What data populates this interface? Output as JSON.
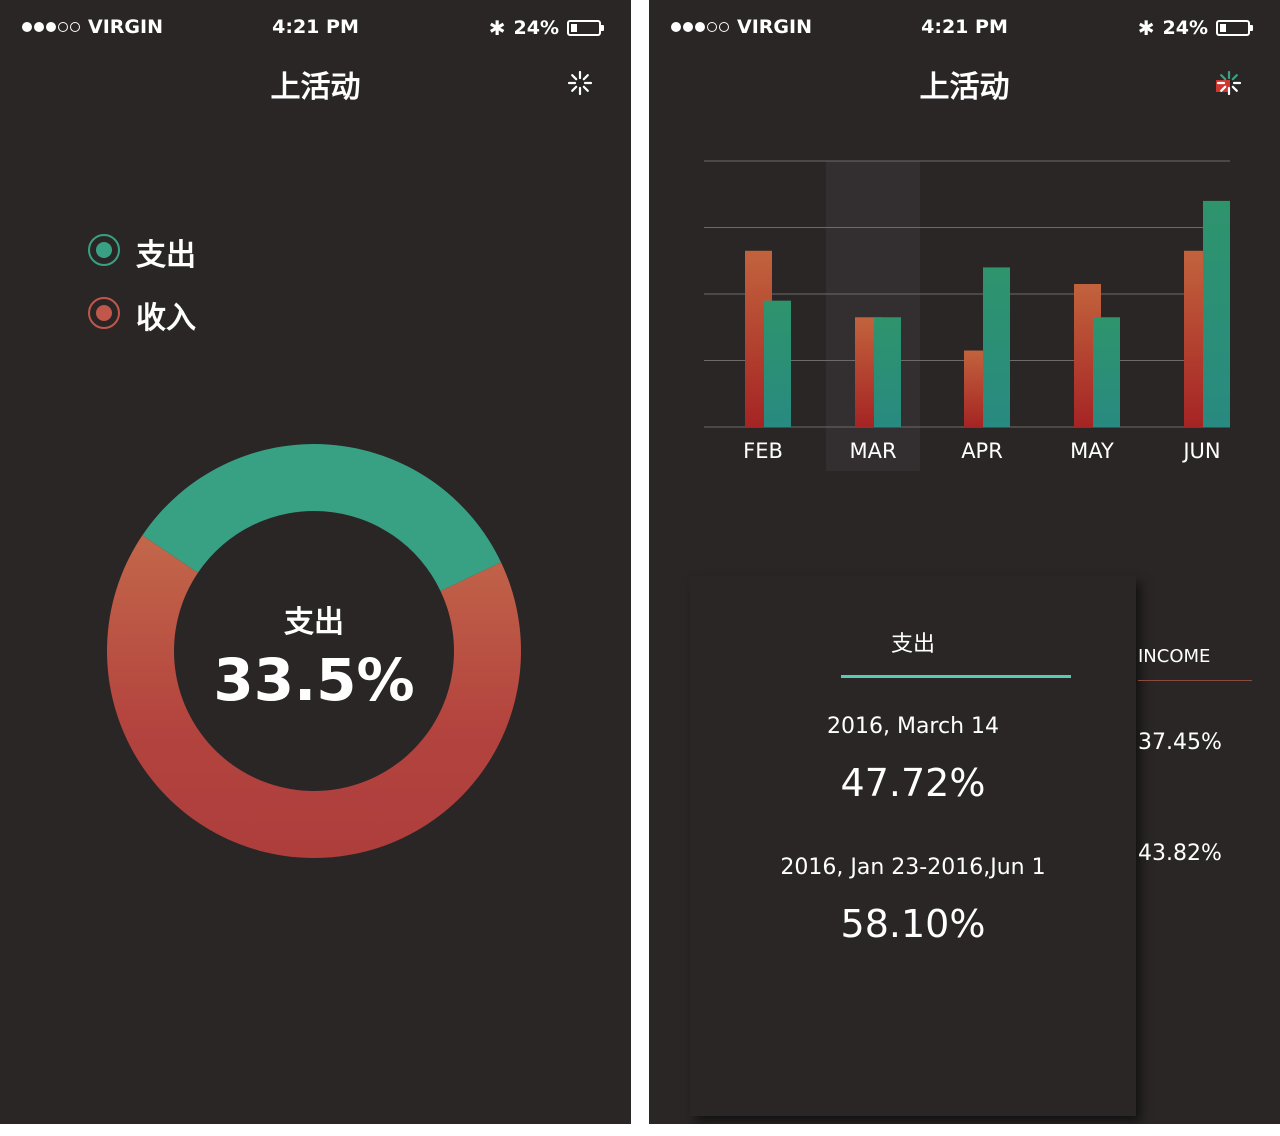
{
  "status_bar": {
    "carrier": "VIRGIN",
    "time": "4:21 PM",
    "battery": "24%",
    "battery_level": 0.24
  },
  "header": {
    "title": "上活动"
  },
  "left": {
    "legend": [
      {
        "label": "支出",
        "color": "#3aa083"
      },
      {
        "label": "收入",
        "color": "#c0574a"
      }
    ],
    "donut": {
      "center_label": "支出",
      "center_value": "33.5%",
      "fraction": 0.335
    }
  },
  "right": {
    "chart_data": {
      "type": "bar",
      "categories": [
        "FEB",
        "MAR",
        "APR",
        "MAY",
        "JUN"
      ],
      "series": [
        {
          "values": [
            53,
            33,
            23,
            43,
            53
          ],
          "color": "#c05a3a"
        },
        {
          "values": [
            38,
            33,
            48,
            33,
            68
          ],
          "color": "#2a8e77"
        }
      ],
      "ylim": [
        0,
        80
      ],
      "grid": true,
      "highlight_category": "MAR"
    },
    "card": {
      "tab_label": "支出",
      "entries": [
        {
          "date": "2016, March 14",
          "value": "47.72%"
        },
        {
          "date": "2016, Jan 23-2016,Jun 1",
          "value": "58.10%"
        }
      ]
    },
    "income": {
      "label": "INCOME",
      "values": [
        "37.45%",
        "43.82%"
      ]
    }
  }
}
